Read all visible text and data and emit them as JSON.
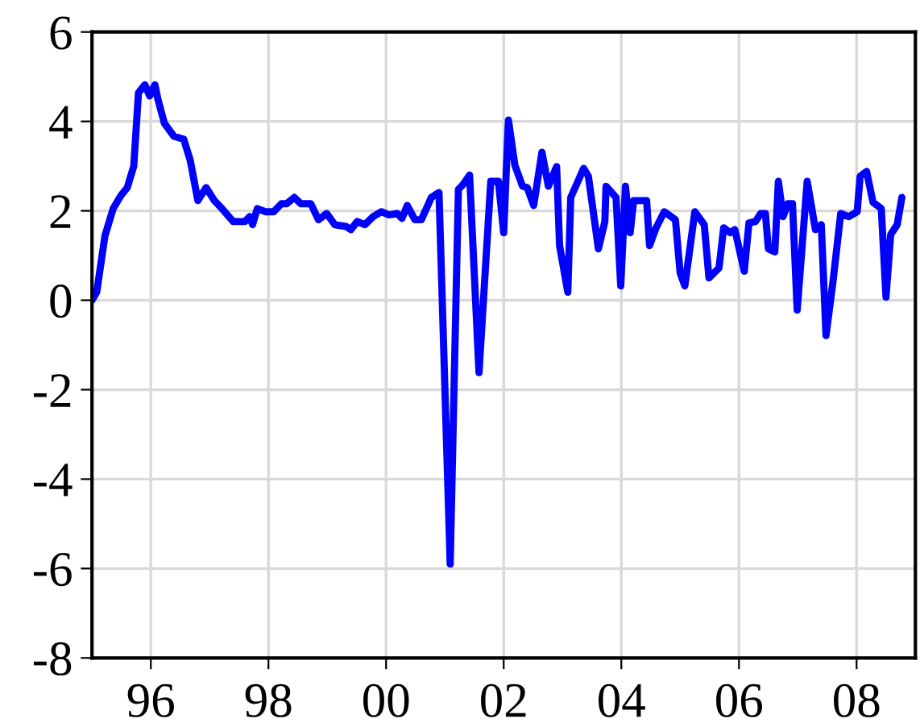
{
  "chart_data": {
    "type": "line",
    "grid": true,
    "marker": "none",
    "line_style": "solid",
    "xlim": [
      1995,
      2009
    ],
    "ylim": [
      -8,
      6
    ],
    "yticks": [
      -8,
      -6,
      -4,
      -2,
      0,
      2,
      4,
      6
    ],
    "xticks": [
      {
        "value": 1996,
        "label": "96"
      },
      {
        "value": 1998,
        "label": "98"
      },
      {
        "value": 2000,
        "label": "00"
      },
      {
        "value": 2002,
        "label": "02"
      },
      {
        "value": 2004,
        "label": "04"
      },
      {
        "value": 2006,
        "label": "06"
      },
      {
        "value": 2008,
        "label": "08"
      }
    ],
    "series": [
      {
        "color": "#0000ff",
        "x": [
          1995.0,
          1995.08,
          1995.22,
          1995.36,
          1995.49,
          1995.6,
          1995.71,
          1995.79,
          1995.9,
          1995.98,
          1996.07,
          1996.12,
          1996.23,
          1996.39,
          1996.56,
          1996.67,
          1996.8,
          1996.94,
          1997.08,
          1997.21,
          1997.4,
          1997.6,
          1997.68,
          1997.73,
          1997.81,
          1997.95,
          1998.09,
          1998.22,
          1998.31,
          1998.44,
          1998.55,
          1998.72,
          1998.85,
          1998.99,
          1999.13,
          1999.32,
          1999.4,
          1999.51,
          1999.64,
          1999.78,
          1999.92,
          2000.05,
          2000.19,
          2000.27,
          2000.36,
          2000.49,
          2000.6,
          2000.77,
          2000.9,
          2001.09,
          2001.23,
          2001.31,
          2001.42,
          2001.58,
          2001.78,
          2001.91,
          2002.0,
          2002.08,
          2002.19,
          2002.32,
          2002.4,
          2002.51,
          2002.65,
          2002.76,
          2002.9,
          2002.95,
          2003.09,
          2003.14,
          2003.36,
          2003.44,
          2003.61,
          2003.72,
          2003.74,
          2003.91,
          2003.99,
          2004.07,
          2004.15,
          2004.21,
          2004.43,
          2004.48,
          2004.59,
          2004.73,
          2004.92,
          2005.0,
          2005.08,
          2005.25,
          2005.41,
          2005.49,
          2005.66,
          2005.74,
          2005.85,
          2005.93,
          2006.09,
          2006.17,
          2006.28,
          2006.37,
          2006.45,
          2006.5,
          2006.61,
          2006.67,
          2006.75,
          2006.83,
          2006.91,
          2006.99,
          2007.16,
          2007.3,
          2007.4,
          2007.48,
          2007.6,
          2007.73,
          2007.87,
          2008.01,
          2008.06,
          2008.17,
          2008.28,
          2008.42,
          2008.5,
          2008.58,
          2008.69,
          2008.77
        ],
        "values": [
          0,
          0.18,
          1.44,
          2.05,
          2.34,
          2.52,
          3.0,
          4.64,
          4.82,
          4.57,
          4.82,
          4.5,
          3.96,
          3.67,
          3.6,
          3.13,
          2.23,
          2.52,
          2.23,
          2.05,
          1.76,
          1.76,
          1.87,
          1.69,
          2.05,
          1.98,
          1.98,
          2.16,
          2.16,
          2.3,
          2.16,
          2.16,
          1.8,
          1.94,
          1.69,
          1.65,
          1.58,
          1.76,
          1.69,
          1.87,
          1.98,
          1.91,
          1.94,
          1.83,
          2.12,
          1.8,
          1.8,
          2.3,
          2.41,
          -5.9,
          2.48,
          2.59,
          2.8,
          -1.62,
          2.66,
          2.66,
          1.51,
          4.03,
          3.02,
          2.55,
          2.52,
          2.12,
          3.31,
          2.55,
          2.99,
          1.22,
          0.18,
          2.3,
          2.95,
          2.77,
          1.15,
          1.76,
          2.55,
          2.3,
          0.32,
          2.55,
          1.51,
          2.23,
          2.23,
          1.22,
          1.62,
          1.98,
          1.8,
          0.61,
          0.32,
          1.98,
          1.69,
          0.5,
          0.72,
          1.62,
          1.51,
          1.58,
          0.65,
          1.73,
          1.76,
          1.94,
          1.94,
          1.15,
          1.08,
          2.66,
          1.87,
          2.16,
          2.16,
          -0.22,
          2.66,
          1.58,
          1.69,
          -0.79,
          0.43,
          1.94,
          1.87,
          1.98,
          2.77,
          2.88,
          2.19,
          2.05,
          0.07,
          1.47,
          1.69,
          2.3
        ]
      }
    ]
  }
}
